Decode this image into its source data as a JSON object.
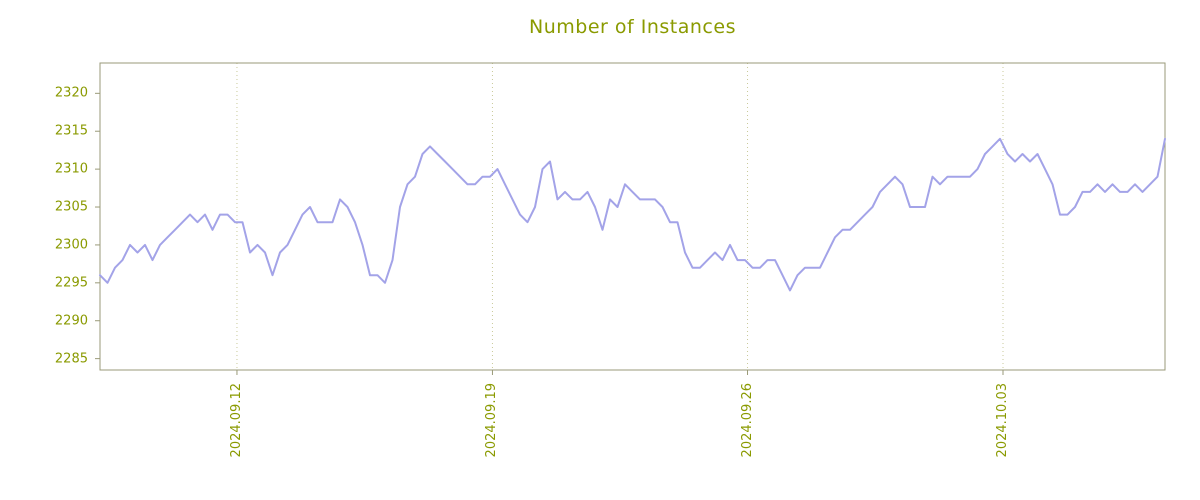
{
  "chart_data": {
    "type": "line",
    "title": "Number of Instances",
    "xlabel": "",
    "ylabel": "",
    "ylim": [
      2283.5,
      2324
    ],
    "y_ticks": [
      2285,
      2290,
      2295,
      2300,
      2305,
      2310,
      2315,
      2320
    ],
    "x_ticks": [
      {
        "pos": 0.1286,
        "label": "2024.09.12"
      },
      {
        "pos": 0.3685,
        "label": "2024.09.19"
      },
      {
        "pos": 0.608,
        "label": "2024.09.26"
      },
      {
        "pos": 0.8479,
        "label": "2024.10.03"
      }
    ],
    "grid": "vertical-dotted",
    "legend": "none",
    "series": [
      {
        "name": "instances",
        "values": [
          2296,
          2295,
          2297,
          2298,
          2300,
          2299,
          2300,
          2298,
          2300,
          2301,
          2302,
          2303,
          2304,
          2303,
          2304,
          2302,
          2304,
          2304,
          2303,
          2303,
          2299,
          2300,
          2299,
          2296,
          2299,
          2300,
          2302,
          2304,
          2305,
          2303,
          2303,
          2303,
          2306,
          2305,
          2303,
          2300,
          2296,
          2296,
          2295,
          2298,
          2305,
          2308,
          2309,
          2312,
          2313,
          2312,
          2311,
          2310,
          2309,
          2308,
          2308,
          2309,
          2309,
          2310,
          2308,
          2306,
          2304,
          2303,
          2305,
          2310,
          2311,
          2306,
          2307,
          2306,
          2306,
          2307,
          2305,
          2302,
          2306,
          2305,
          2308,
          2307,
          2306,
          2306,
          2306,
          2305,
          2303,
          2303,
          2299,
          2297,
          2297,
          2298,
          2299,
          2298,
          2300,
          2298,
          2298,
          2297,
          2297,
          2298,
          2298,
          2296,
          2294,
          2296,
          2297,
          2297,
          2297,
          2299,
          2301,
          2302,
          2302,
          2303,
          2304,
          2305,
          2307,
          2308,
          2309,
          2308,
          2305,
          2305,
          2305,
          2309,
          2308,
          2309,
          2309,
          2309,
          2309,
          2310,
          2312,
          2313,
          2314,
          2312,
          2311,
          2312,
          2311,
          2312,
          2310,
          2308,
          2304,
          2304,
          2305,
          2307,
          2307,
          2308,
          2307,
          2308,
          2307,
          2307,
          2308,
          2307,
          2308,
          2309,
          2314
        ]
      }
    ]
  },
  "colors": {
    "title": "#8a9a00",
    "tick_label": "#8a9a00",
    "line": "#a3a3e8",
    "grid": "#c9c99a",
    "border": "#9a9a78",
    "background": "#ffffff"
  }
}
